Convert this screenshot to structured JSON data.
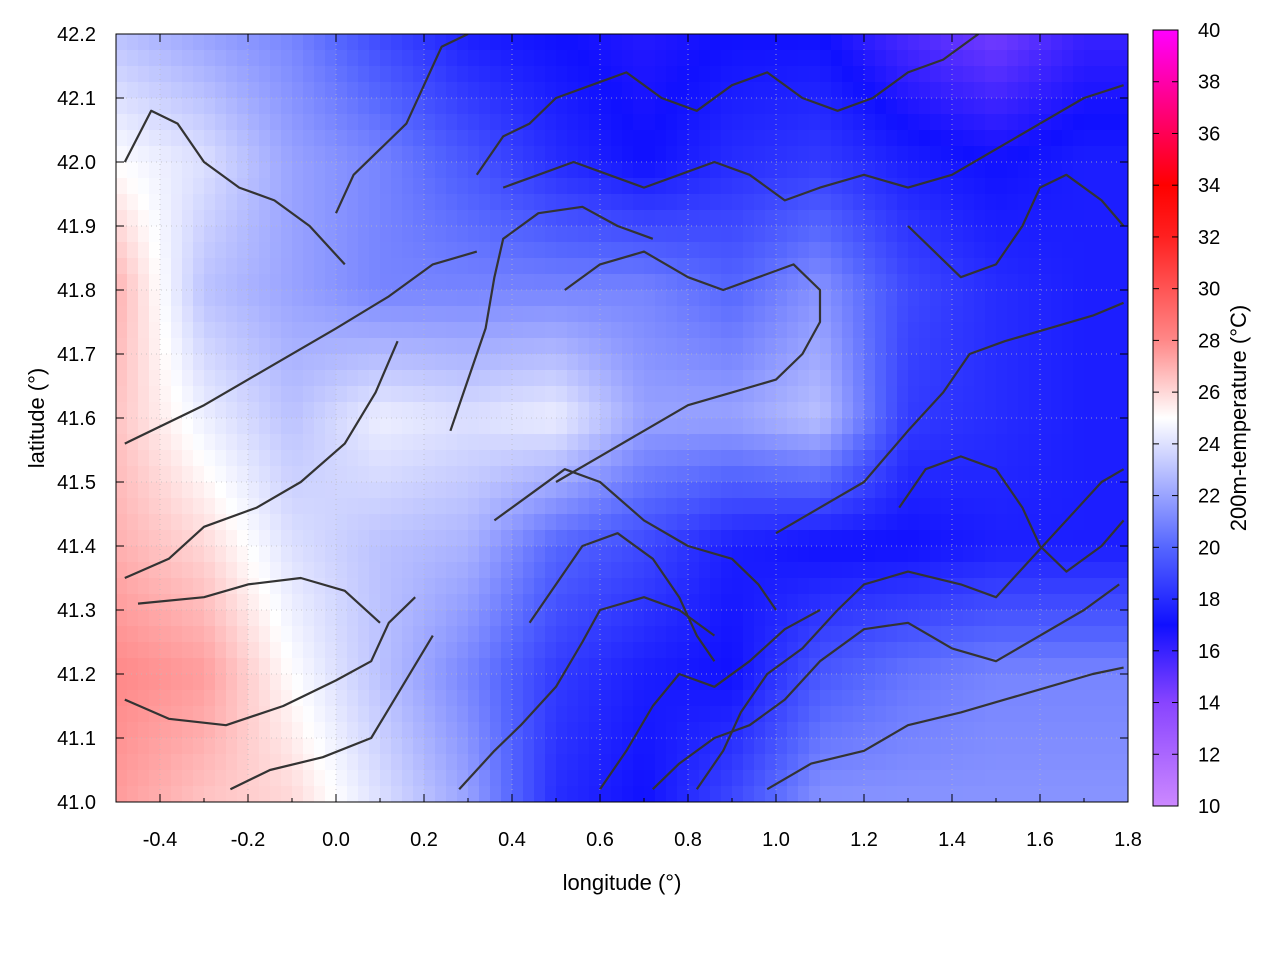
{
  "chart_data": {
    "type": "heatmap",
    "title": "",
    "xlabel": "longitude (°)",
    "ylabel": "latitude (°)",
    "colorbar_label": "200m-temperature (°C)",
    "xlim": [
      -0.5,
      1.8
    ],
    "ylim": [
      41.0,
      42.2
    ],
    "x_ticks": [
      -0.4,
      -0.2,
      0.0,
      0.2,
      0.4,
      0.6,
      0.8,
      1.0,
      1.2,
      1.4,
      1.6,
      1.8
    ],
    "x_tick_labels": [
      "-0.4",
      "-0.2",
      "0.0",
      "0.2",
      "0.4",
      "0.6",
      "0.8",
      "1.0",
      "1.2",
      "1.4",
      "1.6",
      "1.8"
    ],
    "y_ticks": [
      41.0,
      41.1,
      41.2,
      41.3,
      41.4,
      41.5,
      41.6,
      41.7,
      41.8,
      41.9,
      42.0,
      42.1,
      42.2
    ],
    "y_tick_labels": [
      "41.0",
      "41.1",
      "41.2",
      "41.3",
      "41.4",
      "41.5",
      "41.6",
      "41.7",
      "41.8",
      "41.9",
      "42.0",
      "42.1",
      "42.2"
    ],
    "colorbar_range": [
      10,
      40
    ],
    "colorbar_ticks": [
      10,
      12,
      14,
      16,
      18,
      20,
      22,
      24,
      26,
      28,
      30,
      32,
      34,
      36,
      38,
      40
    ],
    "colorbar_tick_labels": [
      "10",
      "12",
      "14",
      "16",
      "18",
      "20",
      "22",
      "24",
      "26",
      "28",
      "30",
      "32",
      "34",
      "36",
      "38",
      "40"
    ],
    "colormap": [
      {
        "value": 10,
        "color": "#cc88ff"
      },
      {
        "value": 14,
        "color": "#8844ff"
      },
      {
        "value": 17,
        "color": "#1010ff"
      },
      {
        "value": 20,
        "color": "#5566ff"
      },
      {
        "value": 25,
        "color": "#ffffff"
      },
      {
        "value": 28,
        "color": "#ff8888"
      },
      {
        "value": 32,
        "color": "#ff2020"
      },
      {
        "value": 34,
        "color": "#ff0000"
      },
      {
        "value": 40,
        "color": "#ff00ff"
      }
    ],
    "grid": true,
    "contour_color": "#333333",
    "temperature_grid_estimate": {
      "x": [
        -0.5,
        -0.3,
        -0.1,
        0.1,
        0.3,
        0.5,
        0.7,
        0.9,
        1.1,
        1.3,
        1.5,
        1.7,
        1.8
      ],
      "y": [
        41.0,
        41.2,
        41.4,
        41.6,
        41.8,
        42.0,
        42.2
      ],
      "z": [
        [
          27.5,
          26.5,
          26.0,
          24.0,
          22.0,
          18.0,
          17.0,
          19.0,
          21.5,
          21.5,
          21.5,
          21.5,
          21.5
        ],
        [
          28.0,
          27.5,
          25.0,
          23.0,
          21.0,
          18.5,
          17.5,
          17.0,
          19.5,
          20.5,
          21.0,
          21.0,
          21.0
        ],
        [
          27.0,
          26.0,
          24.0,
          23.0,
          22.5,
          20.0,
          19.0,
          17.5,
          17.0,
          17.0,
          17.5,
          17.5,
          17.5
        ],
        [
          26.5,
          24.5,
          23.0,
          24.5,
          24.0,
          24.5,
          22.0,
          22.0,
          23.0,
          18.5,
          18.0,
          17.5,
          17.5
        ],
        [
          27.0,
          23.0,
          22.0,
          21.0,
          21.0,
          21.0,
          21.0,
          20.0,
          21.5,
          19.0,
          18.0,
          17.5,
          17.5
        ],
        [
          25.0,
          24.0,
          22.0,
          21.0,
          19.5,
          18.0,
          17.0,
          18.0,
          18.5,
          17.5,
          17.0,
          17.5,
          17.5
        ],
        [
          23.0,
          22.0,
          21.0,
          19.0,
          17.5,
          17.0,
          16.5,
          17.0,
          17.0,
          15.5,
          14.5,
          16.0,
          16.0
        ]
      ]
    },
    "contours": [
      [
        [
          -0.48,
          41.56
        ],
        [
          -0.3,
          41.62
        ],
        [
          -0.15,
          41.68
        ],
        [
          0.0,
          41.74
        ],
        [
          0.12,
          41.79
        ],
        [
          0.22,
          41.84
        ],
        [
          0.32,
          41.86
        ]
      ],
      [
        [
          -0.48,
          41.35
        ],
        [
          -0.38,
          41.38
        ],
        [
          -0.3,
          41.43
        ],
        [
          -0.18,
          41.46
        ],
        [
          -0.08,
          41.5
        ],
        [
          0.02,
          41.56
        ],
        [
          0.09,
          41.64
        ],
        [
          0.14,
          41.72
        ]
      ],
      [
        [
          -0.48,
          41.16
        ],
        [
          -0.38,
          41.13
        ],
        [
          -0.25,
          41.12
        ],
        [
          -0.12,
          41.15
        ],
        [
          0.0,
          41.19
        ],
        [
          0.08,
          41.22
        ],
        [
          0.12,
          41.28
        ],
        [
          0.18,
          41.32
        ]
      ],
      [
        [
          -0.45,
          41.31
        ],
        [
          -0.3,
          41.32
        ],
        [
          -0.2,
          41.34
        ],
        [
          -0.08,
          41.35
        ],
        [
          0.02,
          41.33
        ],
        [
          0.1,
          41.28
        ]
      ],
      [
        [
          -0.24,
          41.02
        ],
        [
          -0.15,
          41.05
        ],
        [
          -0.03,
          41.07
        ],
        [
          0.08,
          41.1
        ],
        [
          0.15,
          41.18
        ],
        [
          0.22,
          41.26
        ]
      ],
      [
        [
          0.28,
          41.02
        ],
        [
          0.36,
          41.08
        ],
        [
          0.42,
          41.12
        ],
        [
          0.5,
          41.18
        ],
        [
          0.56,
          41.25
        ],
        [
          0.6,
          41.3
        ],
        [
          0.7,
          41.32
        ],
        [
          0.78,
          41.3
        ],
        [
          0.86,
          41.26
        ]
      ],
      [
        [
          0.6,
          41.02
        ],
        [
          0.66,
          41.08
        ],
        [
          0.72,
          41.15
        ],
        [
          0.78,
          41.2
        ],
        [
          0.86,
          41.18
        ],
        [
          0.94,
          41.22
        ],
        [
          1.02,
          41.27
        ],
        [
          1.1,
          41.3
        ]
      ],
      [
        [
          0.72,
          41.02
        ],
        [
          0.78,
          41.06
        ],
        [
          0.86,
          41.1
        ],
        [
          0.94,
          41.12
        ],
        [
          1.02,
          41.16
        ],
        [
          1.1,
          41.22
        ],
        [
          1.2,
          41.27
        ],
        [
          1.3,
          41.28
        ],
        [
          1.4,
          41.24
        ],
        [
          1.5,
          41.22
        ],
        [
          1.6,
          41.26
        ],
        [
          1.7,
          41.3
        ],
        [
          1.78,
          41.34
        ]
      ],
      [
        [
          0.98,
          41.02
        ],
        [
          1.08,
          41.06
        ],
        [
          1.2,
          41.08
        ],
        [
          1.3,
          41.12
        ],
        [
          1.42,
          41.14
        ],
        [
          1.52,
          41.16
        ],
        [
          1.62,
          41.18
        ],
        [
          1.72,
          41.2
        ],
        [
          1.79,
          41.21
        ]
      ],
      [
        [
          0.82,
          41.02
        ],
        [
          0.88,
          41.08
        ],
        [
          0.92,
          41.14
        ],
        [
          0.98,
          41.2
        ],
        [
          1.06,
          41.24
        ],
        [
          1.14,
          41.3
        ],
        [
          1.2,
          41.34
        ],
        [
          1.3,
          41.36
        ],
        [
          1.42,
          41.34
        ],
        [
          1.5,
          41.32
        ],
        [
          1.58,
          41.38
        ],
        [
          1.66,
          41.44
        ],
        [
          1.74,
          41.5
        ],
        [
          1.79,
          41.52
        ]
      ],
      [
        [
          1.0,
          41.42
        ],
        [
          1.1,
          41.46
        ],
        [
          1.2,
          41.5
        ],
        [
          1.3,
          41.58
        ],
        [
          1.38,
          41.64
        ],
        [
          1.44,
          41.7
        ],
        [
          1.52,
          41.72
        ],
        [
          1.62,
          41.74
        ],
        [
          1.72,
          41.76
        ],
        [
          1.79,
          41.78
        ]
      ],
      [
        [
          0.5,
          41.5
        ],
        [
          0.6,
          41.54
        ],
        [
          0.7,
          41.58
        ],
        [
          0.8,
          41.62
        ],
        [
          0.9,
          41.64
        ],
        [
          1.0,
          41.66
        ],
        [
          1.06,
          41.7
        ],
        [
          1.1,
          41.75
        ],
        [
          1.1,
          41.8
        ],
        [
          1.04,
          41.84
        ],
        [
          0.96,
          41.82
        ],
        [
          0.88,
          41.8
        ],
        [
          0.8,
          41.82
        ],
        [
          0.7,
          41.86
        ],
        [
          0.6,
          41.84
        ],
        [
          0.52,
          41.8
        ]
      ],
      [
        [
          0.36,
          41.44
        ],
        [
          0.44,
          41.48
        ],
        [
          0.52,
          41.52
        ],
        [
          0.6,
          41.5
        ],
        [
          0.7,
          41.44
        ],
        [
          0.8,
          41.4
        ],
        [
          0.9,
          41.38
        ],
        [
          0.96,
          41.34
        ],
        [
          1.0,
          41.3
        ]
      ],
      [
        [
          0.26,
          41.58
        ],
        [
          0.3,
          41.66
        ],
        [
          0.34,
          41.74
        ],
        [
          0.36,
          41.82
        ],
        [
          0.38,
          41.88
        ],
        [
          0.46,
          41.92
        ],
        [
          0.56,
          41.93
        ],
        [
          0.64,
          41.9
        ],
        [
          0.72,
          41.88
        ]
      ],
      [
        [
          0.02,
          41.84
        ],
        [
          -0.06,
          41.9
        ],
        [
          -0.14,
          41.94
        ],
        [
          -0.22,
          41.96
        ],
        [
          -0.3,
          42.0
        ],
        [
          -0.36,
          42.06
        ],
        [
          -0.42,
          42.08
        ],
        [
          -0.48,
          42.0
        ]
      ],
      [
        [
          0.0,
          41.92
        ],
        [
          0.04,
          41.98
        ],
        [
          0.1,
          42.02
        ],
        [
          0.16,
          42.06
        ],
        [
          0.2,
          42.12
        ],
        [
          0.24,
          42.18
        ],
        [
          0.3,
          42.2
        ]
      ],
      [
        [
          0.32,
          41.98
        ],
        [
          0.38,
          42.04
        ],
        [
          0.44,
          42.06
        ],
        [
          0.5,
          42.1
        ],
        [
          0.58,
          42.12
        ],
        [
          0.66,
          42.14
        ],
        [
          0.74,
          42.1
        ],
        [
          0.82,
          42.08
        ],
        [
          0.9,
          42.12
        ],
        [
          0.98,
          42.14
        ],
        [
          1.06,
          42.1
        ],
        [
          1.14,
          42.08
        ],
        [
          1.22,
          42.1
        ],
        [
          1.3,
          42.14
        ],
        [
          1.38,
          42.16
        ],
        [
          1.46,
          42.2
        ]
      ],
      [
        [
          0.38,
          41.96
        ],
        [
          0.46,
          41.98
        ],
        [
          0.54,
          42.0
        ],
        [
          0.62,
          41.98
        ],
        [
          0.7,
          41.96
        ],
        [
          0.78,
          41.98
        ],
        [
          0.86,
          42.0
        ],
        [
          0.94,
          41.98
        ],
        [
          1.02,
          41.94
        ],
        [
          1.1,
          41.96
        ],
        [
          1.2,
          41.98
        ],
        [
          1.3,
          41.96
        ],
        [
          1.4,
          41.98
        ],
        [
          1.5,
          42.02
        ],
        [
          1.6,
          42.06
        ],
        [
          1.7,
          42.1
        ],
        [
          1.79,
          42.12
        ]
      ],
      [
        [
          1.3,
          41.9
        ],
        [
          1.36,
          41.86
        ],
        [
          1.42,
          41.82
        ],
        [
          1.5,
          41.84
        ],
        [
          1.56,
          41.9
        ],
        [
          1.6,
          41.96
        ],
        [
          1.66,
          41.98
        ],
        [
          1.74,
          41.94
        ],
        [
          1.79,
          41.9
        ]
      ],
      [
        [
          1.28,
          41.46
        ],
        [
          1.34,
          41.52
        ],
        [
          1.42,
          41.54
        ],
        [
          1.5,
          41.52
        ],
        [
          1.56,
          41.46
        ],
        [
          1.6,
          41.4
        ],
        [
          1.66,
          41.36
        ],
        [
          1.74,
          41.4
        ],
        [
          1.79,
          41.44
        ]
      ],
      [
        [
          0.44,
          41.28
        ],
        [
          0.5,
          41.34
        ],
        [
          0.56,
          41.4
        ],
        [
          0.64,
          41.42
        ],
        [
          0.72,
          41.38
        ],
        [
          0.78,
          41.32
        ],
        [
          0.82,
          41.26
        ],
        [
          0.86,
          41.22
        ]
      ]
    ]
  }
}
